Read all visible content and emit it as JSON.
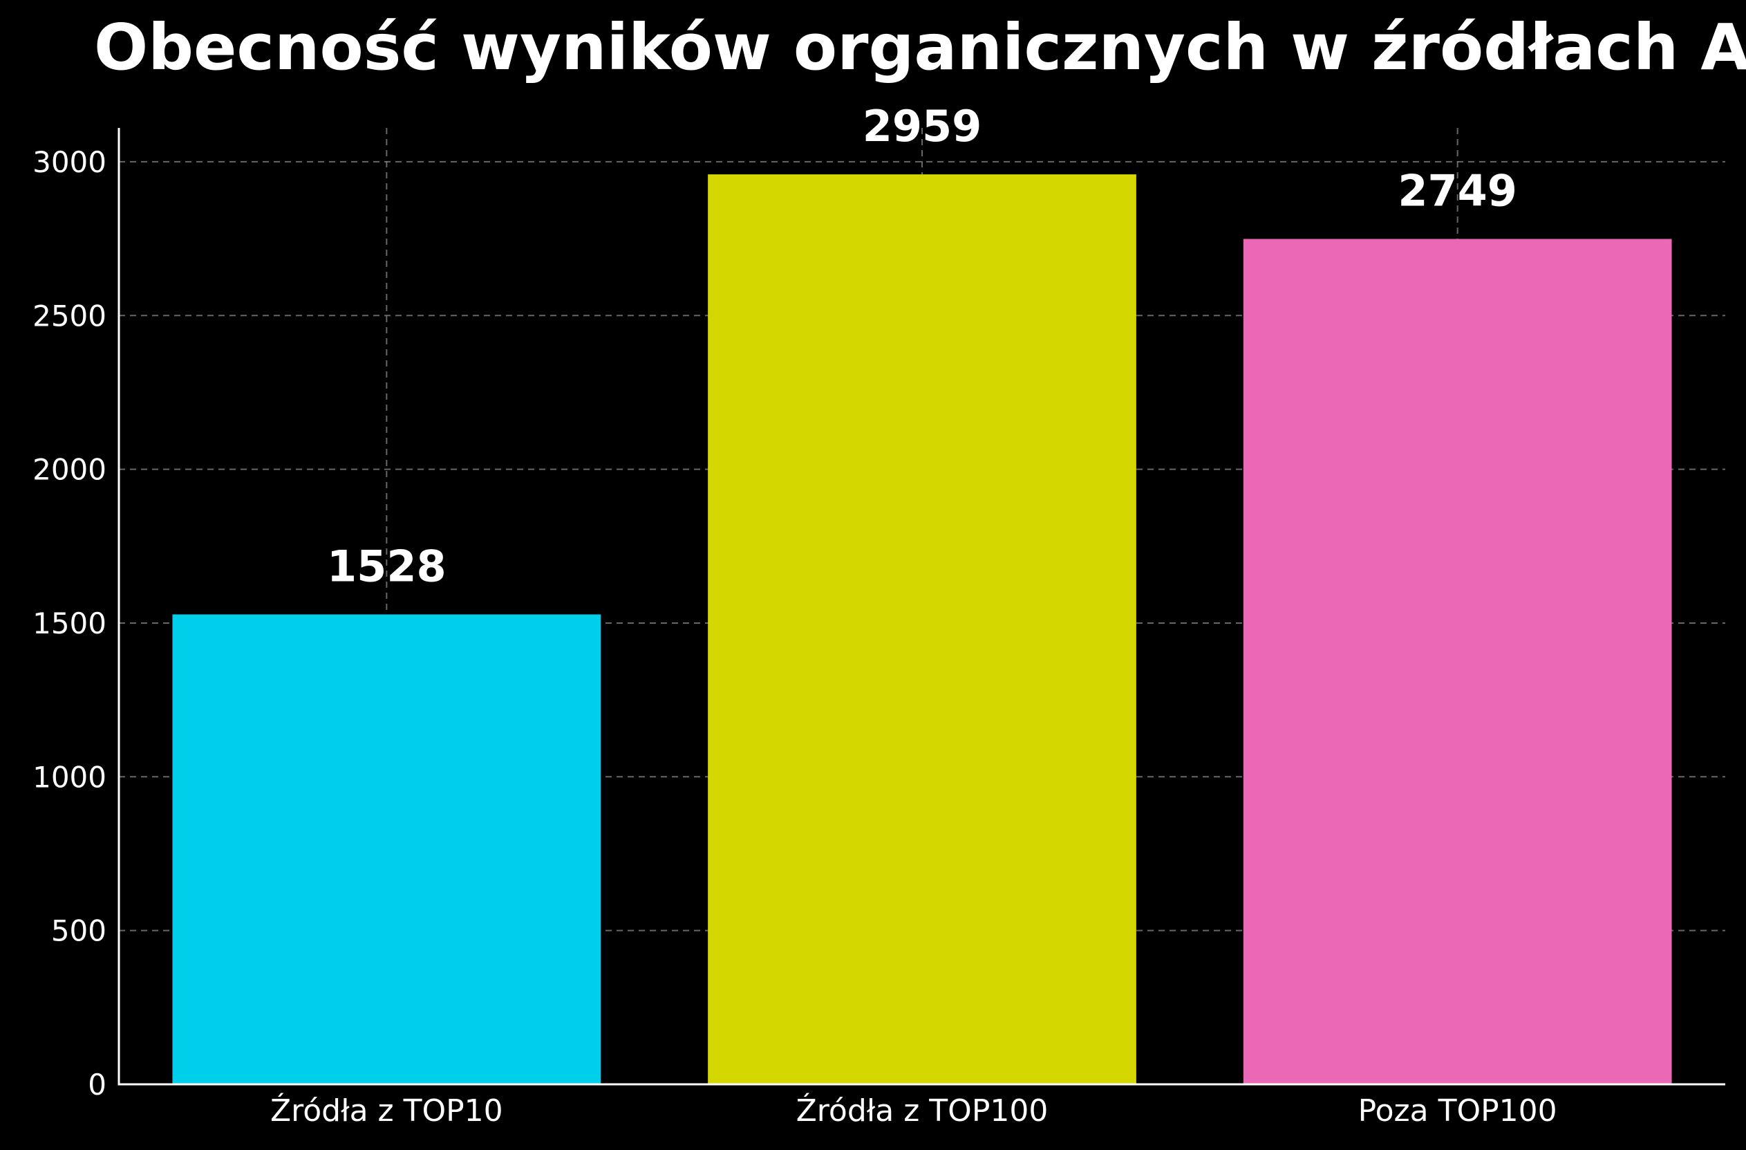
{
  "chart_data": {
    "type": "bar",
    "title": "Obecność wyników organicznych w źródłach AIO",
    "xlabel": "",
    "ylabel": "",
    "categories": [
      "Źródła z TOP10",
      "Źródła z TOP100",
      "Poza TOP100"
    ],
    "values": [
      1528,
      2959,
      2749
    ],
    "value_labels": [
      "1528",
      "2959",
      "2749"
    ],
    "colors": [
      "#00CFEC",
      "#D4D800",
      "#EB68B6"
    ],
    "ylim": [
      0,
      3110
    ],
    "yticks": [
      0,
      500,
      1000,
      1500,
      2000,
      2500,
      3000
    ],
    "ytick_labels": [
      "0",
      "500",
      "1000",
      "1500",
      "2000",
      "2500",
      "3000"
    ],
    "grid": true,
    "legend": "none"
  }
}
